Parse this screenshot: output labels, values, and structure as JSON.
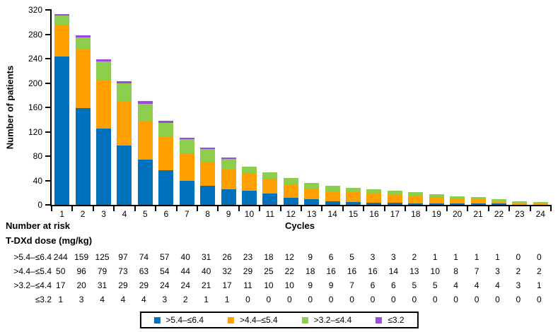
{
  "figure": {
    "background": "#FFFFFF"
  },
  "chart_data": {
    "type": "bar",
    "stacked": true,
    "title": "",
    "xlabel": "Cycles",
    "ylabel": "Number of patients",
    "ylim": [
      0,
      320
    ],
    "ytick_step": 40,
    "ytick_labels": [
      "0",
      "40",
      "80",
      "120",
      "160",
      "200",
      "240",
      "280",
      "320"
    ],
    "categories": [
      "1",
      "2",
      "3",
      "4",
      "5",
      "6",
      "7",
      "8",
      "9",
      "10",
      "11",
      "12",
      "13",
      "14",
      "15",
      "16",
      "17",
      "18",
      "19",
      "20",
      "21",
      "22",
      "23",
      "24"
    ],
    "grid": false,
    "legend_position": "bottom",
    "series": [
      {
        "name": ">5.4–≤6.4",
        "color": "#0072BC",
        "values": [
          244,
          159,
          125,
          97,
          74,
          57,
          40,
          31,
          26,
          23,
          18,
          12,
          9,
          6,
          5,
          3,
          3,
          2,
          1,
          1,
          1,
          1,
          0,
          0
        ]
      },
      {
        "name": ">4.4–≤5.4",
        "color": "#FFA000",
        "values": [
          50,
          96,
          79,
          73,
          63,
          54,
          44,
          40,
          32,
          29,
          25,
          22,
          18,
          16,
          16,
          16,
          14,
          13,
          10,
          8,
          7,
          3,
          2,
          2
        ]
      },
      {
        "name": ">3.2–≤4.4",
        "color": "#8DCE4D",
        "values": [
          17,
          20,
          31,
          29,
          29,
          24,
          24,
          21,
          17,
          11,
          10,
          10,
          9,
          9,
          7,
          6,
          6,
          5,
          5,
          4,
          4,
          4,
          3,
          1
        ]
      },
      {
        "name": "≤3.2",
        "color": "#9B4AE2",
        "values": [
          1,
          3,
          4,
          4,
          4,
          3,
          2,
          1,
          1,
          0,
          0,
          0,
          0,
          0,
          0,
          0,
          0,
          0,
          0,
          0,
          0,
          0,
          0,
          0
        ]
      }
    ]
  },
  "risk_table": {
    "title": "Number at risk",
    "subtitle": "T-DXd dose (mg/kg)",
    "rows": [
      {
        "label": ">5.4–≤6.4",
        "values": [
          244,
          159,
          125,
          97,
          74,
          57,
          40,
          31,
          26,
          23,
          18,
          12,
          9,
          6,
          5,
          3,
          3,
          2,
          1,
          1,
          1,
          1,
          0,
          0
        ]
      },
      {
        "label": ">4.4–≤5.4",
        "values": [
          50,
          96,
          79,
          73,
          63,
          54,
          44,
          40,
          32,
          29,
          25,
          22,
          18,
          16,
          16,
          16,
          14,
          13,
          10,
          8,
          7,
          3,
          2,
          2
        ]
      },
      {
        "label": ">3.2–≤4.4",
        "values": [
          17,
          20,
          31,
          29,
          29,
          24,
          24,
          21,
          17,
          11,
          10,
          10,
          9,
          9,
          7,
          6,
          6,
          5,
          5,
          4,
          4,
          4,
          3,
          1
        ]
      },
      {
        "label": "≤3.2",
        "values": [
          1,
          3,
          4,
          4,
          4,
          3,
          2,
          1,
          1,
          0,
          0,
          0,
          0,
          0,
          0,
          0,
          0,
          0,
          0,
          0,
          0,
          0,
          0,
          0
        ]
      }
    ]
  }
}
